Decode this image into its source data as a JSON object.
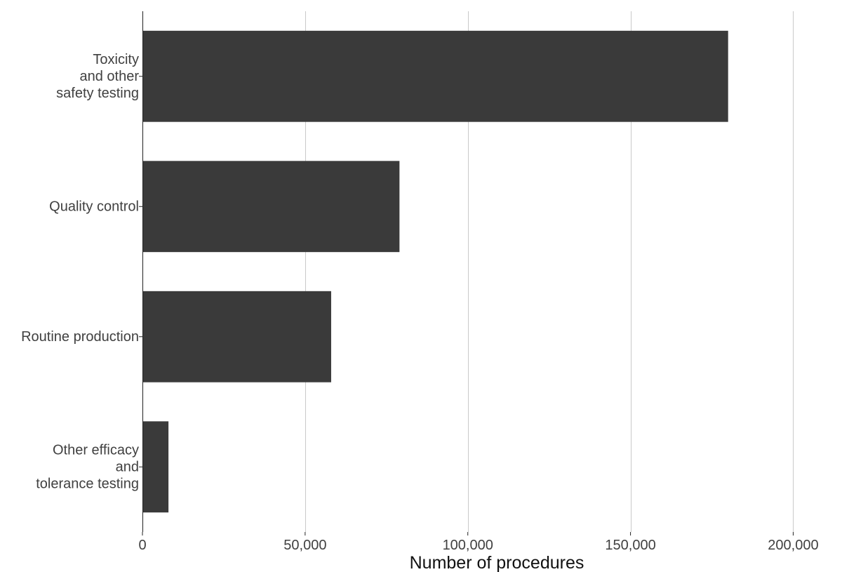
{
  "chart_data": {
    "type": "bar",
    "orientation": "horizontal",
    "title": "",
    "xlabel": "Number of procedures",
    "ylabel": "",
    "categories": [
      "Toxicity and other safety testing",
      "Quality control",
      "Routine production",
      "Other efficacy and tolerance testing"
    ],
    "category_label_lines": [
      [
        "Toxicity",
        "and other",
        "safety testing"
      ],
      [
        "Quality control"
      ],
      [
        "Routine production"
      ],
      [
        "Other efficacy",
        "and",
        "tolerance testing"
      ]
    ],
    "values": [
      180000,
      79000,
      58000,
      8000
    ],
    "xlim": [
      0,
      215000
    ],
    "x_ticks": [
      0,
      50000,
      100000,
      150000,
      200000
    ],
    "x_tick_labels": [
      "0",
      "50,000",
      "100,000",
      "150,000",
      "200,000"
    ],
    "grid": "vertical",
    "legend": "none",
    "bar_color": "#3a3a3a"
  }
}
